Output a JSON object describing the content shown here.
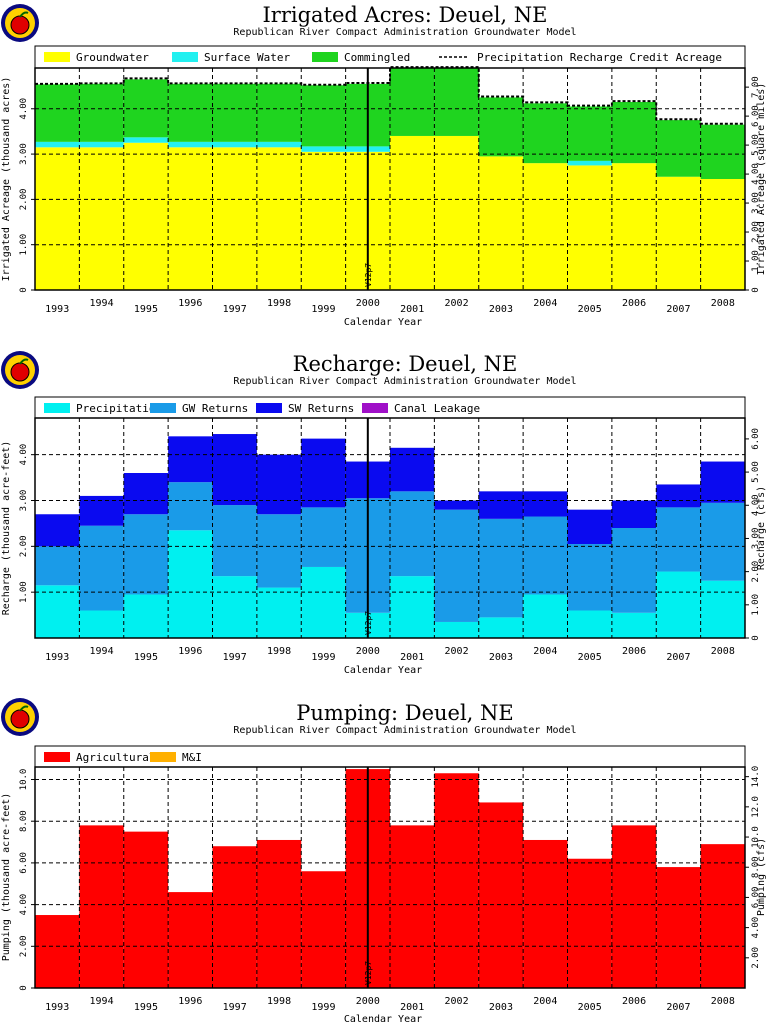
{
  "colors": {
    "groundwater": "#ffff00",
    "surface_water": "#22f0f0",
    "commingled": "#1fd41f",
    "precipitation": "#00f0f0",
    "gw_returns": "#1a9be8",
    "sw_returns": "#0a0af0",
    "canal_leakage": "#a010c8",
    "agricultural": "#ff0000",
    "mi": "#ffb000",
    "logo_ring": "#0a0a80",
    "logo_fill": "#ffd000",
    "logo_apple": "#e00000"
  },
  "icons": [
    "apple-logo-icon"
  ],
  "chart_data": [
    {
      "type": "bar",
      "title": "Irrigated Acres: Deuel, NE",
      "subtitle": "Republican River Compact Administration Groundwater Model",
      "xlabel": "Calendar Year",
      "ylabel": "Irrigated Acreage (thousand acres)",
      "y2label": "Irrigated Acreage (square miles)",
      "categories": [
        "1993",
        "1994",
        "1995",
        "1996",
        "1997",
        "1998",
        "1999",
        "2000",
        "2001",
        "2002",
        "2003",
        "2004",
        "2005",
        "2006",
        "2007",
        "2008"
      ],
      "stacked": true,
      "series": [
        {
          "name": "Groundwater",
          "values": [
            3.15,
            3.15,
            3.25,
            3.15,
            3.15,
            3.15,
            3.05,
            3.05,
            3.4,
            3.4,
            2.95,
            2.8,
            2.75,
            2.8,
            2.5,
            2.45
          ]
        },
        {
          "name": "Surface Water",
          "values": [
            0.12,
            0.12,
            0.12,
            0.12,
            0.12,
            0.12,
            0.12,
            0.12,
            0,
            0,
            0,
            0,
            0.1,
            0,
            0,
            0
          ]
        },
        {
          "name": "Commingled",
          "values": [
            1.27,
            1.28,
            1.28,
            1.28,
            1.28,
            1.28,
            1.35,
            1.38,
            1.5,
            1.5,
            1.3,
            1.32,
            1.2,
            1.35,
            1.25,
            1.2
          ]
        }
      ],
      "line_series": {
        "name": "Precipitation Recharge Credit Acreage",
        "style": "dashed",
        "values": [
          4.55,
          4.56,
          4.67,
          4.56,
          4.56,
          4.56,
          4.53,
          4.57,
          4.92,
          4.92,
          4.27,
          4.14,
          4.07,
          4.17,
          3.77,
          3.67
        ]
      },
      "ylim": [
        0,
        4.9
      ],
      "yticks": [
        "0",
        "1.00",
        "2.00",
        "3.00",
        "4.00"
      ],
      "yticks_values": [
        0,
        1,
        2,
        3,
        4
      ],
      "gridlines": [
        1,
        2,
        3,
        4
      ],
      "y2lim": [
        0,
        7.66
      ],
      "y2ticks": [
        "0",
        "1.00",
        "2.00",
        "3.00",
        "4.00",
        "5.00",
        "6.00",
        "7.00"
      ],
      "marker_label": "V12p7",
      "legend_position": "top"
    },
    {
      "type": "bar",
      "title": "Recharge: Deuel, NE",
      "subtitle": "Republican River Compact Administration Groundwater Model",
      "xlabel": "Calendar Year",
      "ylabel": "Recharge (thousand acre-feet)",
      "y2label": "Recharge (cfs)",
      "categories": [
        "1993",
        "1994",
        "1995",
        "1996",
        "1997",
        "1998",
        "1999",
        "2000",
        "2001",
        "2002",
        "2003",
        "2004",
        "2005",
        "2006",
        "2007",
        "2008"
      ],
      "stacked": true,
      "series": [
        {
          "name": "Precipitation",
          "values": [
            1.15,
            0.6,
            0.95,
            2.35,
            1.35,
            1.1,
            1.55,
            0.55,
            1.35,
            0.35,
            0.45,
            0.95,
            0.6,
            0.55,
            1.45,
            1.25
          ]
        },
        {
          "name": "GW Returns",
          "values": [
            0.85,
            1.85,
            1.75,
            1.05,
            1.55,
            1.6,
            1.3,
            2.5,
            1.85,
            2.45,
            2.15,
            1.7,
            1.45,
            1.85,
            1.4,
            1.7
          ]
        },
        {
          "name": "SW Returns",
          "values": [
            0.7,
            0.65,
            0.9,
            1.0,
            1.55,
            1.3,
            1.5,
            0.8,
            0.95,
            0.2,
            0.6,
            0.55,
            0.75,
            0.6,
            0.5,
            0.9
          ]
        },
        {
          "name": "Canal Leakage",
          "values": [
            0,
            0,
            0,
            0,
            0,
            0,
            0,
            0,
            0,
            0,
            0,
            0,
            0,
            0,
            0,
            0
          ]
        }
      ],
      "ylim": [
        0,
        4.8
      ],
      "yticks": [
        "1.00",
        "2.00",
        "3.00",
        "4.00"
      ],
      "yticks_values": [
        1,
        2,
        3,
        4
      ],
      "gridlines": [
        1,
        2,
        3,
        4
      ],
      "y2lim": [
        0,
        6.63
      ],
      "y2ticks": [
        "0",
        "1.00",
        "2.00",
        "3.00",
        "4.00",
        "5.00",
        "6.00"
      ],
      "marker_label": "V12p7",
      "legend_position": "top"
    },
    {
      "type": "bar",
      "title": "Pumping: Deuel, NE",
      "subtitle": "Republican River Compact Administration Groundwater Model",
      "xlabel": "Calendar Year",
      "ylabel": "Pumping (thousand acre-feet)",
      "y2label": "Pumping (cfs)",
      "categories": [
        "1993",
        "1994",
        "1995",
        "1996",
        "1997",
        "1998",
        "1999",
        "2000",
        "2001",
        "2002",
        "2003",
        "2004",
        "2005",
        "2006",
        "2007",
        "2008"
      ],
      "stacked": true,
      "series": [
        {
          "name": "Agricultural",
          "values": [
            3.5,
            7.8,
            7.5,
            4.6,
            6.8,
            7.1,
            5.6,
            10.5,
            7.8,
            10.3,
            8.9,
            7.1,
            6.2,
            7.8,
            5.8,
            6.9
          ]
        },
        {
          "name": "M&I",
          "values": [
            0,
            0,
            0,
            0,
            0,
            0,
            0,
            0,
            0,
            0,
            0,
            0,
            0,
            0,
            0,
            0
          ]
        }
      ],
      "ylim": [
        0,
        10.6
      ],
      "yticks": [
        "0",
        "2.00",
        "4.00",
        "6.00",
        "8.00",
        "10.0"
      ],
      "yticks_values": [
        0,
        2,
        4,
        6,
        8,
        10
      ],
      "gridlines": [
        2,
        4,
        6,
        8,
        10
      ],
      "y2lim": [
        0,
        14.64
      ],
      "y2ticks": [
        "2.00",
        "4.00",
        "6.00",
        "8.00",
        "10.0",
        "12.0",
        "14.0"
      ],
      "marker_label": "V12p7",
      "legend_position": "top"
    }
  ]
}
